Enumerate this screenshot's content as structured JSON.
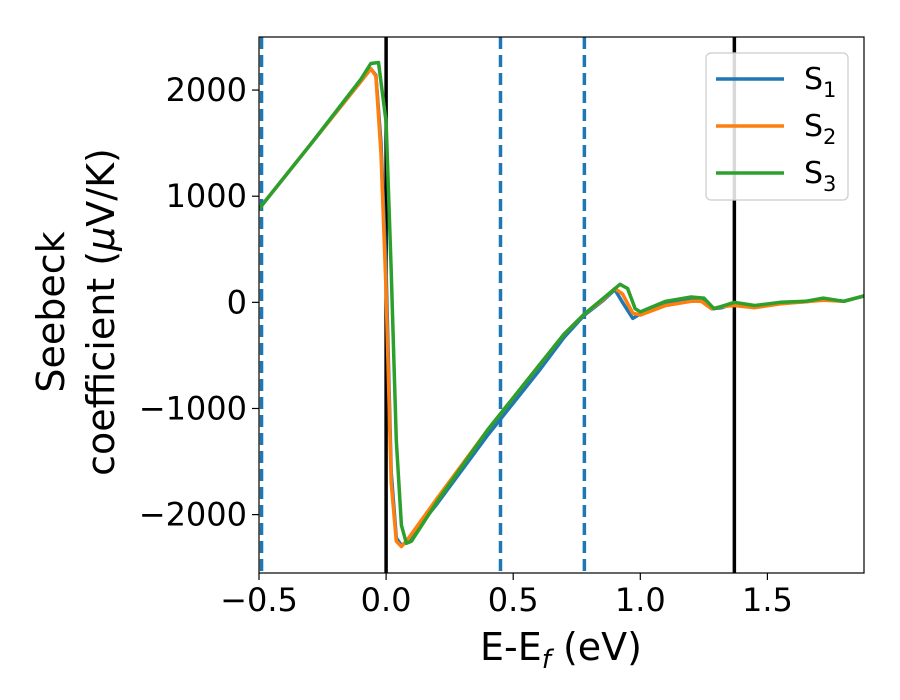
{
  "chart_data": {
    "type": "line",
    "xlabel": "E-E",
    "xlabel_sub": "f",
    "xlabel_unit": " (eV)",
    "ylabel_line1": "Seebeck",
    "ylabel_line2": "coefficient  (",
    "ylabel_mu": "μ",
    "ylabel_unit": "V/K)",
    "xlim": [
      -0.5,
      1.88
    ],
    "ylim": [
      -2550,
      2500
    ],
    "xticks": [
      -0.5,
      0.0,
      0.5,
      1.0,
      1.5
    ],
    "xtick_labels": [
      "−0.5",
      "0.0",
      "0.5",
      "1.0",
      "1.5"
    ],
    "yticks": [
      -2000,
      -1000,
      0,
      1000,
      2000
    ],
    "ytick_labels": [
      "−2000",
      "−1000",
      "0",
      "1000",
      "2000"
    ],
    "legend_position": "top-right",
    "grid": false,
    "vlines": [
      {
        "x": -0.49,
        "style": "dashed",
        "color": "#1f77b4"
      },
      {
        "x": 0.0,
        "style": "solid",
        "color": "#000000"
      },
      {
        "x": 0.45,
        "style": "dashed",
        "color": "#1f77b4"
      },
      {
        "x": 0.78,
        "style": "dashed",
        "color": "#1f77b4"
      },
      {
        "x": 1.37,
        "style": "solid",
        "color": "#000000"
      }
    ],
    "series": [
      {
        "name": "S",
        "sub": "1",
        "color": "#1f77b4",
        "points": [
          [
            -0.5,
            880
          ],
          [
            -0.3,
            1480
          ],
          [
            -0.1,
            2080
          ],
          [
            -0.06,
            2200
          ],
          [
            -0.04,
            2140
          ],
          [
            -0.02,
            1500
          ],
          [
            0.0,
            300
          ],
          [
            0.02,
            -1600
          ],
          [
            0.04,
            -2220
          ],
          [
            0.06,
            -2290
          ],
          [
            0.08,
            -2260
          ],
          [
            0.2,
            -1900
          ],
          [
            0.4,
            -1250
          ],
          [
            0.6,
            -650
          ],
          [
            0.7,
            -330
          ],
          [
            0.78,
            -120
          ],
          [
            0.85,
            10
          ],
          [
            0.9,
            120
          ],
          [
            0.93,
            0
          ],
          [
            0.97,
            -150
          ],
          [
            1.0,
            -110
          ],
          [
            1.1,
            -10
          ],
          [
            1.2,
            30
          ],
          [
            1.25,
            20
          ],
          [
            1.28,
            -60
          ],
          [
            1.32,
            -50
          ],
          [
            1.37,
            -10
          ],
          [
            1.45,
            -40
          ],
          [
            1.55,
            -5
          ],
          [
            1.65,
            5
          ],
          [
            1.72,
            30
          ],
          [
            1.8,
            10
          ],
          [
            1.88,
            60
          ]
        ]
      },
      {
        "name": "S",
        "sub": "2",
        "color": "#ff7f0e",
        "points": [
          [
            -0.5,
            880
          ],
          [
            -0.3,
            1480
          ],
          [
            -0.1,
            2080
          ],
          [
            -0.06,
            2200
          ],
          [
            -0.04,
            2130
          ],
          [
            -0.02,
            1400
          ],
          [
            0.0,
            100
          ],
          [
            0.02,
            -1700
          ],
          [
            0.04,
            -2250
          ],
          [
            0.06,
            -2300
          ],
          [
            0.08,
            -2250
          ],
          [
            0.2,
            -1850
          ],
          [
            0.4,
            -1200
          ],
          [
            0.6,
            -600
          ],
          [
            0.7,
            -300
          ],
          [
            0.78,
            -110
          ],
          [
            0.85,
            20
          ],
          [
            0.9,
            130
          ],
          [
            0.93,
            80
          ],
          [
            0.97,
            -100
          ],
          [
            1.0,
            -120
          ],
          [
            1.1,
            -30
          ],
          [
            1.2,
            10
          ],
          [
            1.24,
            10
          ],
          [
            1.28,
            -60
          ],
          [
            1.32,
            -40
          ],
          [
            1.37,
            -30
          ],
          [
            1.45,
            -50
          ],
          [
            1.55,
            -15
          ],
          [
            1.65,
            5
          ],
          [
            1.72,
            20
          ],
          [
            1.8,
            10
          ],
          [
            1.88,
            60
          ]
        ]
      },
      {
        "name": "S",
        "sub": "3",
        "color": "#2ca02c",
        "points": [
          [
            -0.5,
            880
          ],
          [
            -0.3,
            1480
          ],
          [
            -0.1,
            2100
          ],
          [
            -0.06,
            2250
          ],
          [
            -0.03,
            2260
          ],
          [
            0.0,
            1700
          ],
          [
            0.02,
            300
          ],
          [
            0.04,
            -1300
          ],
          [
            0.06,
            -2100
          ],
          [
            0.08,
            -2270
          ],
          [
            0.1,
            -2250
          ],
          [
            0.2,
            -1880
          ],
          [
            0.4,
            -1200
          ],
          [
            0.6,
            -600
          ],
          [
            0.7,
            -300
          ],
          [
            0.78,
            -110
          ],
          [
            0.85,
            30
          ],
          [
            0.92,
            170
          ],
          [
            0.95,
            130
          ],
          [
            0.98,
            -60
          ],
          [
            1.0,
            -90
          ],
          [
            1.1,
            10
          ],
          [
            1.2,
            50
          ],
          [
            1.25,
            40
          ],
          [
            1.29,
            -60
          ],
          [
            1.33,
            -30
          ],
          [
            1.37,
            0
          ],
          [
            1.45,
            -30
          ],
          [
            1.55,
            0
          ],
          [
            1.65,
            10
          ],
          [
            1.72,
            40
          ],
          [
            1.8,
            10
          ],
          [
            1.88,
            60
          ]
        ]
      }
    ]
  }
}
